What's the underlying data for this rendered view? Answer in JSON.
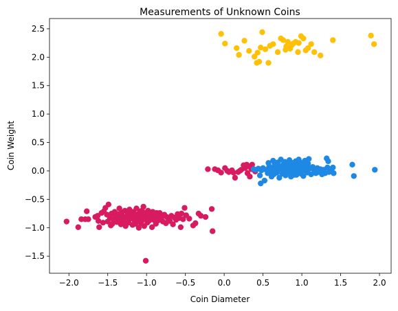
{
  "chart_data": {
    "type": "scatter",
    "title": "Measurements of Unknown Coins",
    "xlabel": "Coin Diameter",
    "ylabel": "Coin Weight",
    "xlim": [
      -2.25,
      2.15
    ],
    "ylim": [
      -1.8,
      2.68
    ],
    "xticks": [
      -2.0,
      -1.5,
      -1.0,
      -0.5,
      0.0,
      0.5,
      1.0,
      1.5,
      2.0
    ],
    "xtick_labels": [
      "−2.0",
      "−1.5",
      "−1.0",
      "−0.5",
      "0.0",
      "0.5",
      "1.0",
      "1.5",
      "2.0"
    ],
    "yticks": [
      -1.5,
      -1.0,
      -0.5,
      0.0,
      0.5,
      1.0,
      1.5,
      2.0,
      2.5
    ],
    "ytick_labels": [
      "−1.5",
      "−1.0",
      "−0.5",
      "0.0",
      "0.5",
      "1.0",
      "1.5",
      "2.0",
      "2.5"
    ],
    "grid": false,
    "series": [
      {
        "color": "#d81b60",
        "points": [
          [
            -2.03,
            -0.89
          ],
          [
            -1.88,
            -0.99
          ],
          [
            -1.84,
            -0.85
          ],
          [
            -1.79,
            -0.85
          ],
          [
            -1.77,
            -0.71
          ],
          [
            -1.75,
            -0.85
          ],
          [
            -1.66,
            -0.81
          ],
          [
            -1.63,
            -0.79
          ],
          [
            -1.62,
            -0.88
          ],
          [
            -1.61,
            -0.99
          ],
          [
            -1.58,
            -0.74
          ],
          [
            -1.55,
            -0.71
          ],
          [
            -1.53,
            -0.65
          ],
          [
            -1.51,
            -0.77
          ],
          [
            -1.5,
            -0.89
          ],
          [
            -1.49,
            -0.59
          ],
          [
            -1.47,
            -0.83
          ],
          [
            -1.46,
            -0.96
          ],
          [
            -1.45,
            -0.75
          ],
          [
            -1.43,
            -0.85
          ],
          [
            -1.41,
            -0.72
          ],
          [
            -1.4,
            -0.81
          ],
          [
            -1.38,
            -0.9
          ],
          [
            -1.37,
            -0.76
          ],
          [
            -1.35,
            -0.66
          ],
          [
            -1.34,
            -0.85
          ],
          [
            -1.33,
            -0.94
          ],
          [
            -1.32,
            -0.73
          ],
          [
            -1.3,
            -0.8
          ],
          [
            -1.29,
            -0.88
          ],
          [
            -1.28,
            -0.7
          ],
          [
            -1.27,
            -0.97
          ],
          [
            -1.25,
            -0.82
          ],
          [
            -1.24,
            -0.75
          ],
          [
            -1.23,
            -0.91
          ],
          [
            -1.22,
            -0.68
          ],
          [
            -1.21,
            -0.84
          ],
          [
            -1.19,
            -0.78
          ],
          [
            -1.18,
            -0.95
          ],
          [
            -1.17,
            -0.72
          ],
          [
            -1.16,
            -0.86
          ],
          [
            -1.15,
            -0.81
          ],
          [
            -1.13,
            -0.66
          ],
          [
            -1.12,
            -0.89
          ],
          [
            -1.11,
            -0.76
          ],
          [
            -1.1,
            -1.0
          ],
          [
            -1.09,
            -0.83
          ],
          [
            -1.08,
            -0.71
          ],
          [
            -1.07,
            -0.92
          ],
          [
            -1.06,
            -0.79
          ],
          [
            -1.05,
            -0.86
          ],
          [
            -1.04,
            -0.63
          ],
          [
            -1.03,
            -0.97
          ],
          [
            -1.02,
            -0.74
          ],
          [
            -1.01,
            -0.85
          ],
          [
            -1.0,
            -0.8
          ],
          [
            -0.99,
            -0.91
          ],
          [
            -0.98,
            -0.7
          ],
          [
            -0.97,
            -0.88
          ],
          [
            -0.96,
            -0.77
          ],
          [
            -0.95,
            -0.83
          ],
          [
            -0.93,
            -0.99
          ],
          [
            -0.92,
            -0.72
          ],
          [
            -0.91,
            -0.86
          ],
          [
            -0.9,
            -0.81
          ],
          [
            -0.88,
            -0.93
          ],
          [
            -0.86,
            -0.78
          ],
          [
            -0.85,
            -0.87
          ],
          [
            -0.83,
            -0.74
          ],
          [
            -0.81,
            -0.83
          ],
          [
            -0.79,
            -0.89
          ],
          [
            -0.77,
            -0.77
          ],
          [
            -0.75,
            -0.92
          ],
          [
            -0.74,
            -0.81
          ],
          [
            -0.72,
            -0.84
          ],
          [
            -0.7,
            -0.88
          ],
          [
            -0.68,
            -0.79
          ],
          [
            -0.66,
            -0.94
          ],
          [
            -0.64,
            -0.82
          ],
          [
            -0.62,
            -0.86
          ],
          [
            -0.6,
            -0.76
          ],
          [
            -0.58,
            -0.83
          ],
          [
            -0.56,
            -0.99
          ],
          [
            -0.55,
            -0.75
          ],
          [
            -0.53,
            -0.85
          ],
          [
            -0.51,
            -0.65
          ],
          [
            -0.49,
            -0.78
          ],
          [
            -0.45,
            -0.84
          ],
          [
            -0.4,
            -0.96
          ],
          [
            -0.37,
            -0.92
          ],
          [
            -0.33,
            -0.75
          ],
          [
            -0.3,
            -0.79
          ],
          [
            -0.24,
            -0.81
          ],
          [
            -0.16,
            -0.67
          ],
          [
            -0.15,
            -1.06
          ],
          [
            -1.01,
            -1.58
          ],
          [
            -1.56,
            -0.91
          ],
          [
            -1.44,
            -0.93
          ],
          [
            -1.36,
            -0.78
          ],
          [
            -1.26,
            -0.87
          ],
          [
            -1.2,
            -0.74
          ],
          [
            -1.14,
            -0.93
          ],
          [
            -1.06,
            -0.7
          ],
          [
            -0.94,
            -0.84
          ],
          [
            -0.87,
            -0.74
          ],
          [
            -0.21,
            0.03
          ],
          [
            -0.12,
            0.03
          ],
          [
            -0.08,
            0.01
          ],
          [
            -0.04,
            -0.03
          ],
          [
            0.01,
            0.05
          ],
          [
            0.04,
            0.0
          ],
          [
            0.06,
            -0.02
          ],
          [
            0.1,
            0.01
          ],
          [
            0.12,
            -0.03
          ],
          [
            0.14,
            -0.12
          ],
          [
            0.18,
            -0.02
          ],
          [
            0.2,
            0.0
          ],
          [
            0.22,
            0.02
          ],
          [
            0.25,
            0.1
          ],
          [
            0.27,
            0.05
          ],
          [
            0.29,
            0.11
          ],
          [
            0.3,
            -0.04
          ],
          [
            0.32,
            0.08
          ],
          [
            0.33,
            -0.1
          ],
          [
            0.35,
            0.03
          ],
          [
            0.36,
            0.11
          ],
          [
            0.38,
            0.02
          ],
          [
            0.4,
            -0.01
          ]
        ]
      },
      {
        "color": "#1e88e5",
        "points": [
          [
            0.38,
            0.03
          ],
          [
            0.41,
            0.02
          ],
          [
            0.44,
            0.04
          ],
          [
            0.46,
            -0.08
          ],
          [
            0.47,
            -0.22
          ],
          [
            0.48,
            0.01
          ],
          [
            0.5,
            0.05
          ],
          [
            0.52,
            -0.17
          ],
          [
            0.54,
            0.02
          ],
          [
            0.56,
            -0.04
          ],
          [
            0.57,
            0.14
          ],
          [
            0.58,
            0.08
          ],
          [
            0.6,
            -0.01
          ],
          [
            0.61,
            -0.1
          ],
          [
            0.62,
            0.05
          ],
          [
            0.63,
            0.18
          ],
          [
            0.64,
            -0.06
          ],
          [
            0.65,
            0.12
          ],
          [
            0.66,
            0.01
          ],
          [
            0.67,
            0.09
          ],
          [
            0.68,
            -0.03
          ],
          [
            0.69,
            0.15
          ],
          [
            0.7,
            0.04
          ],
          [
            0.71,
            -0.12
          ],
          [
            0.72,
            0.07
          ],
          [
            0.73,
            0.2
          ],
          [
            0.74,
            0.02
          ],
          [
            0.75,
            -0.05
          ],
          [
            0.76,
            0.11
          ],
          [
            0.77,
            0.0
          ],
          [
            0.78,
            0.16
          ],
          [
            0.79,
            -0.08
          ],
          [
            0.8,
            0.06
          ],
          [
            0.81,
            0.13
          ],
          [
            0.82,
            -0.02
          ],
          [
            0.83,
            0.09
          ],
          [
            0.84,
            0.19
          ],
          [
            0.85,
            0.03
          ],
          [
            0.86,
            -0.1
          ],
          [
            0.87,
            0.07
          ],
          [
            0.88,
            0.14
          ],
          [
            0.89,
            -0.04
          ],
          [
            0.9,
            0.1
          ],
          [
            0.91,
            0.01
          ],
          [
            0.92,
            0.17
          ],
          [
            0.93,
            -0.07
          ],
          [
            0.94,
            0.05
          ],
          [
            0.95,
            0.12
          ],
          [
            0.96,
            -0.01
          ],
          [
            0.97,
            0.08
          ],
          [
            0.98,
            0.15
          ],
          [
            0.99,
            -0.05
          ],
          [
            1.0,
            0.03
          ],
          [
            1.01,
            0.11
          ],
          [
            1.02,
            -0.09
          ],
          [
            1.03,
            0.06
          ],
          [
            1.04,
            0.18
          ],
          [
            1.05,
            0.0
          ],
          [
            1.06,
            0.09
          ],
          [
            1.07,
            -0.03
          ],
          [
            1.08,
            0.13
          ],
          [
            1.09,
            0.21
          ],
          [
            1.1,
            0.04
          ],
          [
            1.12,
            -0.06
          ],
          [
            1.14,
            0.07
          ],
          [
            1.16,
            0.01
          ],
          [
            1.18,
            -0.04
          ],
          [
            1.2,
            0.05
          ],
          [
            1.22,
            -0.02
          ],
          [
            1.24,
            0.03
          ],
          [
            1.26,
            -0.06
          ],
          [
            1.28,
            0.02
          ],
          [
            1.3,
            -0.04
          ],
          [
            1.32,
            0.22
          ],
          [
            1.33,
            0.06
          ],
          [
            1.34,
            0.17
          ],
          [
            1.35,
            -0.02
          ],
          [
            1.36,
            0.03
          ],
          [
            1.38,
            0.01
          ],
          [
            1.4,
            0.06
          ],
          [
            1.41,
            -0.04
          ],
          [
            1.65,
            0.11
          ],
          [
            1.67,
            -0.09
          ],
          [
            1.94,
            0.02
          ],
          [
            0.9,
            -0.07
          ],
          [
            0.74,
            0.08
          ],
          [
            0.96,
            0.2
          ],
          [
            0.84,
            -0.02
          ],
          [
            1.06,
            0.14
          ],
          [
            0.62,
            0.0
          ]
        ]
      },
      {
        "color": "#ffc107",
        "points": [
          [
            -0.04,
            2.41
          ],
          [
            0.01,
            2.24
          ],
          [
            0.16,
            2.16
          ],
          [
            0.19,
            2.04
          ],
          [
            0.26,
            2.29
          ],
          [
            0.32,
            2.11
          ],
          [
            0.39,
            2.01
          ],
          [
            0.42,
            1.9
          ],
          [
            0.43,
            2.08
          ],
          [
            0.45,
            1.92
          ],
          [
            0.47,
            2.17
          ],
          [
            0.49,
            2.44
          ],
          [
            0.53,
            2.14
          ],
          [
            0.57,
            1.9
          ],
          [
            0.59,
            2.2
          ],
          [
            0.63,
            2.23
          ],
          [
            0.69,
            2.09
          ],
          [
            0.73,
            2.33
          ],
          [
            0.76,
            2.3
          ],
          [
            0.79,
            2.13
          ],
          [
            0.8,
            2.19
          ],
          [
            0.82,
            2.27
          ],
          [
            0.85,
            2.15
          ],
          [
            0.87,
            2.21
          ],
          [
            0.89,
            2.24
          ],
          [
            0.92,
            2.27
          ],
          [
            0.95,
            2.09
          ],
          [
            0.96,
            2.25
          ],
          [
            0.99,
            2.37
          ],
          [
            1.02,
            2.33
          ],
          [
            1.05,
            2.12
          ],
          [
            1.08,
            2.16
          ],
          [
            1.12,
            2.23
          ],
          [
            1.16,
            2.09
          ],
          [
            1.24,
            2.03
          ],
          [
            1.4,
            2.3
          ],
          [
            1.89,
            2.38
          ],
          [
            1.93,
            2.23
          ]
        ]
      }
    ]
  }
}
